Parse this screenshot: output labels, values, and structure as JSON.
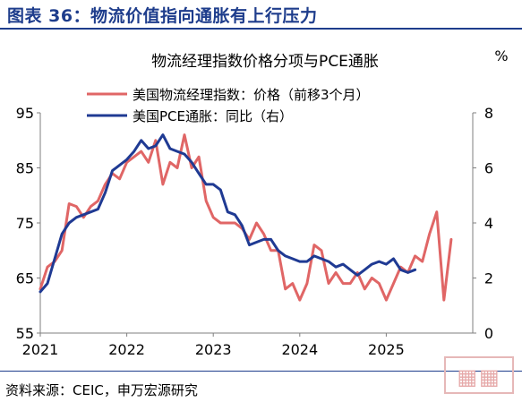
{
  "header": {
    "title": "图表 36：物流价值指向通胀有上行压力"
  },
  "source": {
    "text": "资料来源：CEIC，申万宏源研究"
  },
  "stamp": {
    "text": "港澳"
  },
  "colors": {
    "brand": "#1e3d8c",
    "price_line": "#e06666",
    "pce_line": "#1f3a93"
  },
  "chart_data": {
    "type": "line",
    "title": "物流经理指数价格分项与PCE通胀",
    "right_unit": "%",
    "x_ticks": [
      "2021",
      "2022",
      "2023",
      "2024",
      "2025"
    ],
    "y_left": {
      "range": [
        55,
        95
      ],
      "ticks": [
        "95",
        "85",
        "75",
        "65",
        "55"
      ]
    },
    "y_right": {
      "range": [
        0,
        8
      ],
      "ticks": [
        "8",
        "6",
        "4",
        "2",
        "0"
      ]
    },
    "series": [
      {
        "name": "美国物流经理指数：价格（前移3个月）",
        "axis": "left",
        "color": "#e06666",
        "x": [
          "2021-01",
          "2021-02",
          "2021-03",
          "2021-04",
          "2021-05",
          "2021-06",
          "2021-07",
          "2021-08",
          "2021-09",
          "2021-10",
          "2021-11",
          "2021-12",
          "2022-01",
          "2022-02",
          "2022-03",
          "2022-04",
          "2022-05",
          "2022-06",
          "2022-07",
          "2022-08",
          "2022-09",
          "2022-10",
          "2022-11",
          "2022-12",
          "2023-01",
          "2023-02",
          "2023-03",
          "2023-04",
          "2023-05",
          "2023-06",
          "2023-07",
          "2023-08",
          "2023-09",
          "2023-10",
          "2023-11",
          "2023-12",
          "2024-01",
          "2024-02",
          "2024-03",
          "2024-04",
          "2024-05",
          "2024-06",
          "2024-07",
          "2024-08",
          "2024-09",
          "2024-10",
          "2024-11",
          "2024-12",
          "2025-01",
          "2025-02",
          "2025-03",
          "2025-04",
          "2025-05",
          "2025-06",
          "2025-07",
          "2025-08",
          "2025-09",
          "2025-10"
        ],
        "values": [
          63,
          67,
          68,
          70,
          78.5,
          78,
          76,
          78,
          79,
          82,
          84,
          83,
          86,
          87,
          88,
          86,
          90,
          82,
          86,
          85,
          91,
          85,
          87,
          79,
          76,
          75,
          75,
          75,
          74,
          72,
          75,
          73,
          70,
          70,
          63,
          64,
          61,
          64,
          71,
          70,
          64,
          66,
          64,
          64,
          66,
          63,
          65,
          64,
          61,
          64,
          67,
          66,
          69,
          68,
          73,
          77,
          61,
          72
        ]
      },
      {
        "name": "美国PCE通胀：同比（右）",
        "axis": "right",
        "color": "#1f3a93",
        "x": [
          "2021-01",
          "2021-02",
          "2021-03",
          "2021-04",
          "2021-05",
          "2021-06",
          "2021-07",
          "2021-08",
          "2021-09",
          "2021-10",
          "2021-11",
          "2021-12",
          "2022-01",
          "2022-02",
          "2022-03",
          "2022-04",
          "2022-05",
          "2022-06",
          "2022-07",
          "2022-08",
          "2022-09",
          "2022-10",
          "2022-11",
          "2022-12",
          "2023-01",
          "2023-02",
          "2023-03",
          "2023-04",
          "2023-05",
          "2023-06",
          "2023-07",
          "2023-08",
          "2023-09",
          "2023-10",
          "2023-11",
          "2023-12",
          "2024-01",
          "2024-02",
          "2024-03",
          "2024-04",
          "2024-05",
          "2024-06",
          "2024-07",
          "2024-08",
          "2024-09",
          "2024-10",
          "2024-11",
          "2024-12",
          "2025-01",
          "2025-02",
          "2025-03",
          "2025-04",
          "2025-05"
        ],
        "values": [
          1.5,
          1.8,
          2.7,
          3.6,
          4.0,
          4.2,
          4.3,
          4.4,
          4.5,
          5.1,
          5.9,
          6.1,
          6.3,
          6.6,
          7.0,
          6.7,
          6.8,
          7.2,
          6.7,
          6.6,
          6.5,
          6.2,
          5.8,
          5.4,
          5.4,
          5.2,
          4.4,
          4.3,
          3.9,
          3.2,
          3.3,
          3.4,
          3.4,
          3.0,
          2.8,
          2.7,
          2.6,
          2.6,
          2.8,
          2.7,
          2.6,
          2.4,
          2.5,
          2.3,
          2.1,
          2.3,
          2.5,
          2.6,
          2.5,
          2.7,
          2.3,
          2.2,
          2.3
        ]
      }
    ]
  }
}
